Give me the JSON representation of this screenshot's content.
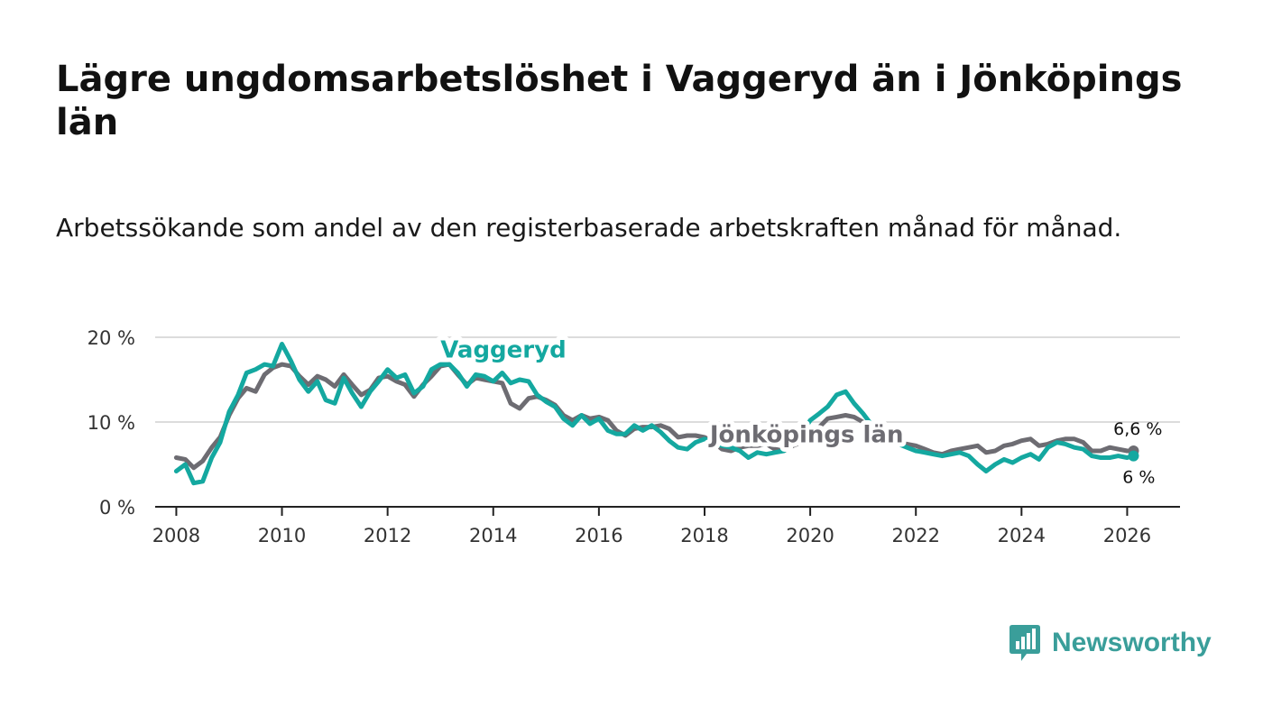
{
  "title": "Lägre ungdomsarbetslöshet i Vaggeryd än i Jönköpings län",
  "subtitle": "Arbetssökande som andel av den registerbaserade arbetskraften månad för månad.",
  "brand": {
    "name": "Newsworthy",
    "icon": "newsworthy-logo-icon",
    "color": "#3a9e9a"
  },
  "chart_data": {
    "type": "line",
    "title": "Lägre ungdomsarbetslöshet i Vaggeryd än i Jönköpings län",
    "xlabel": "",
    "ylabel": "",
    "xlim": [
      2007.6,
      2027.0
    ],
    "ylim": [
      0,
      20
    ],
    "x_ticks": [
      2008,
      2010,
      2012,
      2014,
      2016,
      2018,
      2020,
      2022,
      2024,
      2026
    ],
    "x_tick_labels": [
      "2008",
      "2010",
      "2012",
      "2014",
      "2016",
      "2018",
      "2020",
      "2022",
      "2024",
      "2026"
    ],
    "y_ticks": [
      0,
      10,
      20
    ],
    "y_tick_labels": [
      "0 %",
      "10 %",
      "20 %"
    ],
    "grid": "horizontal",
    "series": [
      {
        "name": "Jönköpings län",
        "label": "Jönköpings län",
        "color": "#6d6c72",
        "end_label": "6,6 %",
        "points": [
          [
            2008.0,
            5.8
          ],
          [
            2008.17,
            5.6
          ],
          [
            2008.33,
            4.6
          ],
          [
            2008.5,
            5.4
          ],
          [
            2008.67,
            7.0
          ],
          [
            2008.83,
            8.2
          ],
          [
            2009.0,
            10.8
          ],
          [
            2009.17,
            12.8
          ],
          [
            2009.33,
            14.0
          ],
          [
            2009.5,
            13.6
          ],
          [
            2009.67,
            15.6
          ],
          [
            2009.83,
            16.4
          ],
          [
            2010.0,
            16.8
          ],
          [
            2010.17,
            16.6
          ],
          [
            2010.33,
            15.4
          ],
          [
            2010.5,
            14.4
          ],
          [
            2010.67,
            15.4
          ],
          [
            2010.83,
            15.0
          ],
          [
            2011.0,
            14.2
          ],
          [
            2011.17,
            15.6
          ],
          [
            2011.33,
            14.4
          ],
          [
            2011.5,
            13.2
          ],
          [
            2011.67,
            13.8
          ],
          [
            2011.83,
            15.2
          ],
          [
            2012.0,
            15.4
          ],
          [
            2012.17,
            14.8
          ],
          [
            2012.33,
            14.4
          ],
          [
            2012.5,
            13.0
          ],
          [
            2012.67,
            14.4
          ],
          [
            2012.83,
            15.4
          ],
          [
            2013.0,
            16.6
          ],
          [
            2013.17,
            16.8
          ],
          [
            2013.33,
            15.6
          ],
          [
            2013.5,
            14.4
          ],
          [
            2013.67,
            15.2
          ],
          [
            2013.83,
            15.0
          ],
          [
            2014.0,
            14.8
          ],
          [
            2014.17,
            14.6
          ],
          [
            2014.33,
            12.2
          ],
          [
            2014.5,
            11.6
          ],
          [
            2014.67,
            12.8
          ],
          [
            2014.83,
            13.0
          ],
          [
            2015.0,
            12.6
          ],
          [
            2015.17,
            12.0
          ],
          [
            2015.33,
            10.8
          ],
          [
            2015.5,
            10.2
          ],
          [
            2015.67,
            10.8
          ],
          [
            2015.83,
            10.4
          ],
          [
            2016.0,
            10.6
          ],
          [
            2016.17,
            10.2
          ],
          [
            2016.33,
            9.0
          ],
          [
            2016.5,
            8.4
          ],
          [
            2016.67,
            9.2
          ],
          [
            2016.83,
            9.4
          ],
          [
            2017.0,
            9.4
          ],
          [
            2017.17,
            9.6
          ],
          [
            2017.33,
            9.2
          ],
          [
            2017.5,
            8.2
          ],
          [
            2017.67,
            8.4
          ],
          [
            2017.83,
            8.4
          ],
          [
            2018.0,
            8.2
          ],
          [
            2018.17,
            7.6
          ],
          [
            2018.33,
            6.8
          ],
          [
            2018.5,
            6.6
          ],
          [
            2018.67,
            7.0
          ],
          [
            2018.83,
            7.2
          ],
          [
            2019.0,
            7.2
          ],
          [
            2019.17,
            7.4
          ],
          [
            2019.33,
            6.8
          ],
          [
            2019.5,
            6.6
          ],
          [
            2019.67,
            7.2
          ],
          [
            2019.83,
            7.6
          ],
          [
            2020.0,
            8.2
          ],
          [
            2020.17,
            9.4
          ],
          [
            2020.33,
            10.4
          ],
          [
            2020.5,
            10.6
          ],
          [
            2020.67,
            10.8
          ],
          [
            2020.83,
            10.6
          ],
          [
            2021.0,
            10.0
          ],
          [
            2021.17,
            9.4
          ],
          [
            2021.33,
            8.6
          ],
          [
            2021.5,
            7.8
          ],
          [
            2021.67,
            7.6
          ],
          [
            2021.83,
            7.4
          ],
          [
            2022.0,
            7.2
          ],
          [
            2022.17,
            6.8
          ],
          [
            2022.33,
            6.4
          ],
          [
            2022.5,
            6.2
          ],
          [
            2022.67,
            6.6
          ],
          [
            2022.83,
            6.8
          ],
          [
            2023.0,
            7.0
          ],
          [
            2023.17,
            7.2
          ],
          [
            2023.33,
            6.4
          ],
          [
            2023.5,
            6.6
          ],
          [
            2023.67,
            7.2
          ],
          [
            2023.83,
            7.4
          ],
          [
            2024.0,
            7.8
          ],
          [
            2024.17,
            8.0
          ],
          [
            2024.33,
            7.2
          ],
          [
            2024.5,
            7.4
          ],
          [
            2024.67,
            7.8
          ],
          [
            2024.83,
            8.0
          ],
          [
            2025.0,
            8.0
          ],
          [
            2025.17,
            7.6
          ],
          [
            2025.33,
            6.6
          ],
          [
            2025.5,
            6.6
          ],
          [
            2025.67,
            7.0
          ],
          [
            2025.83,
            6.8
          ],
          [
            2026.0,
            6.6
          ],
          [
            2026.12,
            6.6
          ]
        ]
      },
      {
        "name": "Vaggeryd",
        "label": "Vaggeryd",
        "color": "#14a8a0",
        "end_label": "6 %",
        "points": [
          [
            2008.0,
            4.2
          ],
          [
            2008.17,
            5.0
          ],
          [
            2008.33,
            2.8
          ],
          [
            2008.5,
            3.0
          ],
          [
            2008.67,
            5.8
          ],
          [
            2008.83,
            7.6
          ],
          [
            2009.0,
            11.2
          ],
          [
            2009.17,
            13.2
          ],
          [
            2009.33,
            15.8
          ],
          [
            2009.5,
            16.2
          ],
          [
            2009.67,
            16.8
          ],
          [
            2009.83,
            16.6
          ],
          [
            2010.0,
            19.2
          ],
          [
            2010.17,
            17.2
          ],
          [
            2010.33,
            15.0
          ],
          [
            2010.5,
            13.6
          ],
          [
            2010.67,
            14.8
          ],
          [
            2010.83,
            12.6
          ],
          [
            2011.0,
            12.2
          ],
          [
            2011.17,
            15.2
          ],
          [
            2011.33,
            13.4
          ],
          [
            2011.5,
            11.8
          ],
          [
            2011.67,
            13.6
          ],
          [
            2011.83,
            14.8
          ],
          [
            2012.0,
            16.2
          ],
          [
            2012.17,
            15.2
          ],
          [
            2012.33,
            15.6
          ],
          [
            2012.5,
            13.4
          ],
          [
            2012.67,
            14.2
          ],
          [
            2012.83,
            16.2
          ],
          [
            2013.0,
            16.8
          ],
          [
            2013.17,
            16.8
          ],
          [
            2013.33,
            15.8
          ],
          [
            2013.5,
            14.2
          ],
          [
            2013.67,
            15.6
          ],
          [
            2013.83,
            15.4
          ],
          [
            2014.0,
            14.8
          ],
          [
            2014.17,
            15.8
          ],
          [
            2014.33,
            14.6
          ],
          [
            2014.5,
            15.0
          ],
          [
            2014.67,
            14.8
          ],
          [
            2014.83,
            13.2
          ],
          [
            2015.0,
            12.4
          ],
          [
            2015.17,
            11.8
          ],
          [
            2015.33,
            10.4
          ],
          [
            2015.5,
            9.6
          ],
          [
            2015.67,
            10.8
          ],
          [
            2015.83,
            9.8
          ],
          [
            2016.0,
            10.4
          ],
          [
            2016.17,
            9.0
          ],
          [
            2016.33,
            8.6
          ],
          [
            2016.5,
            8.6
          ],
          [
            2016.67,
            9.6
          ],
          [
            2016.83,
            9.0
          ],
          [
            2017.0,
            9.6
          ],
          [
            2017.17,
            8.8
          ],
          [
            2017.33,
            7.8
          ],
          [
            2017.5,
            7.0
          ],
          [
            2017.67,
            6.8
          ],
          [
            2017.83,
            7.6
          ],
          [
            2018.0,
            8.0
          ],
          [
            2018.17,
            7.6
          ],
          [
            2018.33,
            7.2
          ],
          [
            2018.5,
            7.0
          ],
          [
            2018.67,
            6.6
          ],
          [
            2018.83,
            5.8
          ],
          [
            2019.0,
            6.4
          ],
          [
            2019.17,
            6.2
          ],
          [
            2019.33,
            6.4
          ],
          [
            2019.5,
            6.6
          ],
          [
            2019.67,
            7.4
          ],
          [
            2019.83,
            8.6
          ],
          [
            2020.0,
            10.2
          ],
          [
            2020.17,
            11.0
          ],
          [
            2020.33,
            11.8
          ],
          [
            2020.5,
            13.2
          ],
          [
            2020.67,
            13.6
          ],
          [
            2020.83,
            12.2
          ],
          [
            2021.0,
            11.0
          ],
          [
            2021.17,
            9.6
          ],
          [
            2021.33,
            8.6
          ],
          [
            2021.5,
            7.6
          ],
          [
            2021.67,
            7.4
          ],
          [
            2021.83,
            7.0
          ],
          [
            2022.0,
            6.6
          ],
          [
            2022.17,
            6.4
          ],
          [
            2022.33,
            6.2
          ],
          [
            2022.5,
            6.0
          ],
          [
            2022.67,
            6.2
          ],
          [
            2022.83,
            6.4
          ],
          [
            2023.0,
            6.0
          ],
          [
            2023.17,
            5.0
          ],
          [
            2023.33,
            4.2
          ],
          [
            2023.5,
            5.0
          ],
          [
            2023.67,
            5.6
          ],
          [
            2023.83,
            5.2
          ],
          [
            2024.0,
            5.8
          ],
          [
            2024.17,
            6.2
          ],
          [
            2024.33,
            5.6
          ],
          [
            2024.5,
            7.0
          ],
          [
            2024.67,
            7.6
          ],
          [
            2024.83,
            7.4
          ],
          [
            2025.0,
            7.0
          ],
          [
            2025.17,
            6.8
          ],
          [
            2025.33,
            6.0
          ],
          [
            2025.5,
            5.8
          ],
          [
            2025.67,
            5.8
          ],
          [
            2025.83,
            6.0
          ],
          [
            2026.0,
            5.8
          ],
          [
            2026.12,
            6.0
          ]
        ]
      }
    ]
  }
}
